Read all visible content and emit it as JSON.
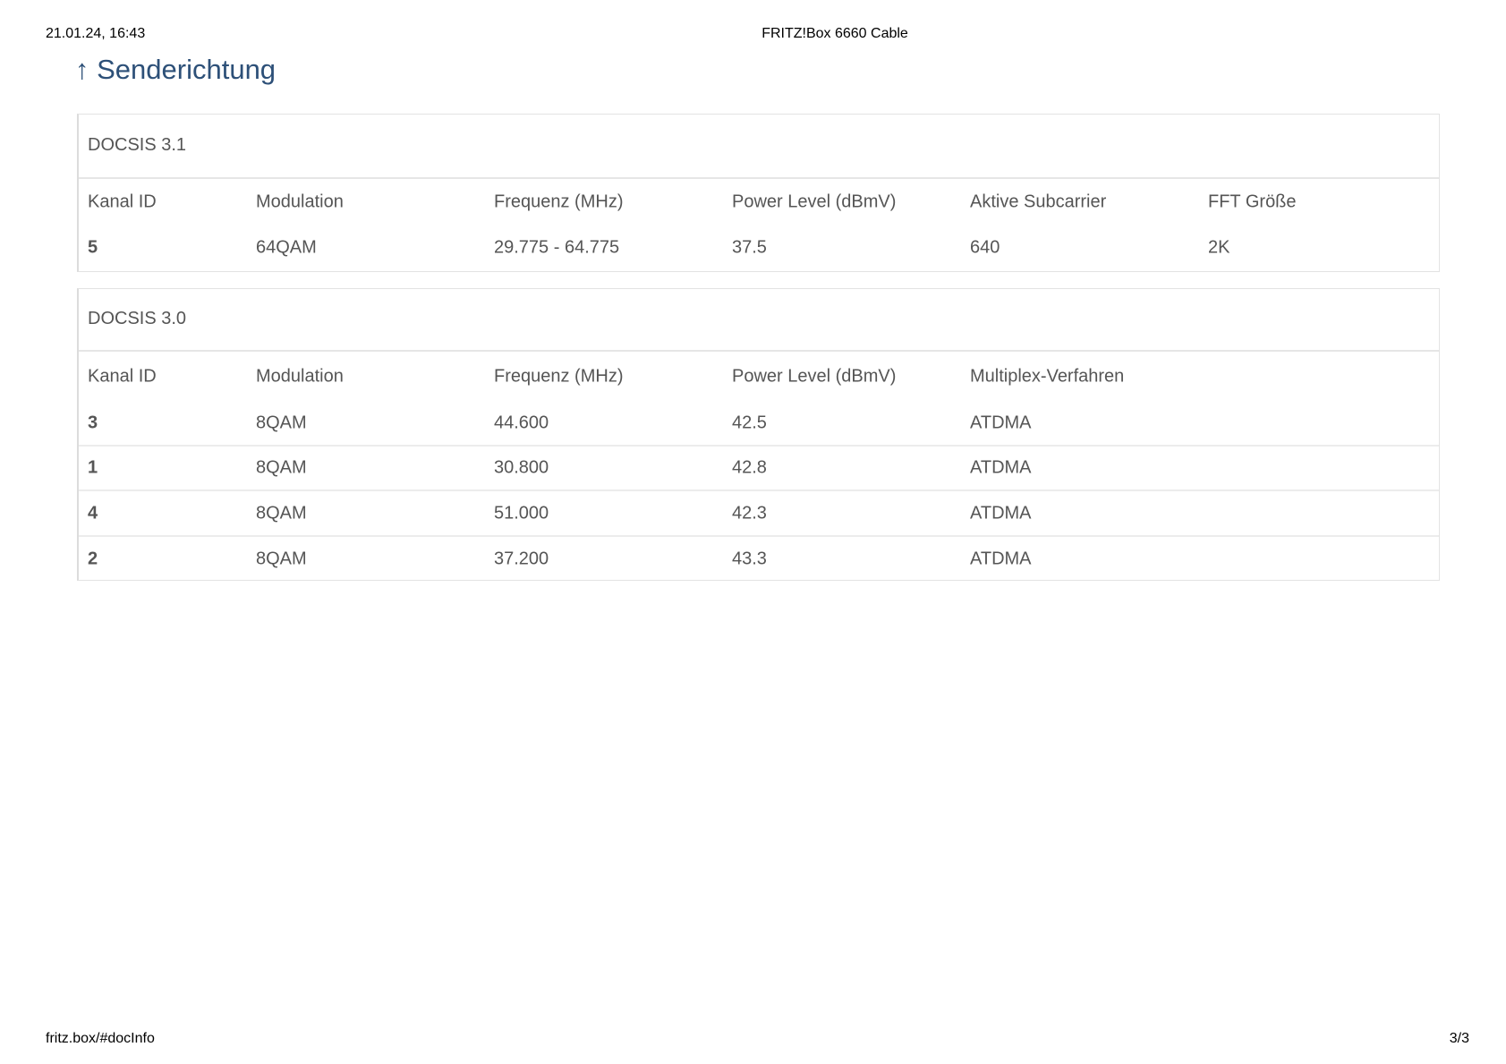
{
  "print_header": {
    "datetime": "21.01.24, 16:43",
    "title": "FRITZ!Box 6660 Cable"
  },
  "print_footer": {
    "url": "fritz.box/#docInfo",
    "page": "3/3"
  },
  "section": {
    "icon": "arrow-up-icon",
    "arrow": "↑",
    "title": "Senderichtung"
  },
  "docsis31": {
    "caption": "DOCSIS 3.1",
    "columns": [
      "Kanal ID",
      "Modulation",
      "Frequenz (MHz)",
      "Power Level (dBmV)",
      "Aktive Subcarrier",
      "FFT Größe"
    ],
    "rows": [
      [
        "5",
        "64QAM",
        "29.775 - 64.775",
        "37.5",
        "640",
        "2K"
      ]
    ]
  },
  "docsis30": {
    "caption": "DOCSIS 3.0",
    "columns": [
      "Kanal ID",
      "Modulation",
      "Frequenz (MHz)",
      "Power Level (dBmV)",
      "Multiplex-Verfahren"
    ],
    "rows": [
      [
        "3",
        "8QAM",
        "44.600",
        "42.5",
        "ATDMA"
      ],
      [
        "1",
        "8QAM",
        "30.800",
        "42.8",
        "ATDMA"
      ],
      [
        "4",
        "8QAM",
        "51.000",
        "42.3",
        "ATDMA"
      ],
      [
        "2",
        "8QAM",
        "37.200",
        "43.3",
        "ATDMA"
      ]
    ]
  }
}
